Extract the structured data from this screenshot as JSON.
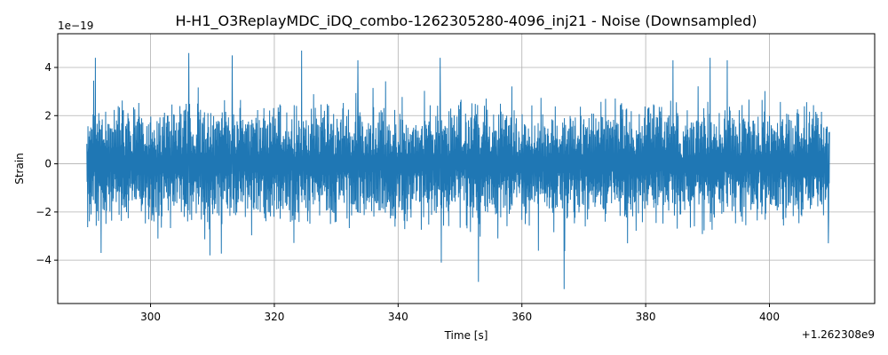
{
  "chart_data": {
    "type": "line",
    "title": "H-H1_O3ReplayMDC_iDQ_combo-1262305280-4096_inj21 - Noise (Downsampled)",
    "xlabel": "Time [s]",
    "ylabel": "Strain",
    "x_offset_label": "+1.262308e9",
    "y_scale_label": "1e−19",
    "xlim": [
      285,
      417
    ],
    "ylim": [
      -5.8,
      5.4
    ],
    "x_ticks": [
      300,
      320,
      340,
      360,
      380,
      400
    ],
    "x_tick_labels": [
      "300",
      "320",
      "340",
      "360",
      "380",
      "400"
    ],
    "y_ticks": [
      -4,
      -2,
      0,
      2,
      4
    ],
    "y_tick_labels": [
      "−4",
      "−2",
      "0",
      "2",
      "4"
    ],
    "grid": true,
    "series": [
      {
        "color": "#1f77b4",
        "x_range": [
          289.7,
          409.7
        ],
        "envelope": [
          1.5,
          2.8
        ],
        "peaks": [
          {
            "x": 291.1,
            "y": 4.4
          },
          {
            "x": 292.0,
            "y": -3.7
          },
          {
            "x": 306.2,
            "y": 4.6
          },
          {
            "x": 313.2,
            "y": 4.5
          },
          {
            "x": 309.6,
            "y": -3.8
          },
          {
            "x": 324.4,
            "y": 4.7
          },
          {
            "x": 333.5,
            "y": 4.3
          },
          {
            "x": 346.8,
            "y": 4.4
          },
          {
            "x": 347.0,
            "y": -4.1
          },
          {
            "x": 353.0,
            "y": -4.9
          },
          {
            "x": 366.8,
            "y": -5.2
          },
          {
            "x": 384.4,
            "y": 4.3
          },
          {
            "x": 390.4,
            "y": 4.4
          },
          {
            "x": 393.2,
            "y": 4.3
          },
          {
            "x": 409.5,
            "y": -3.3
          }
        ]
      }
    ]
  }
}
